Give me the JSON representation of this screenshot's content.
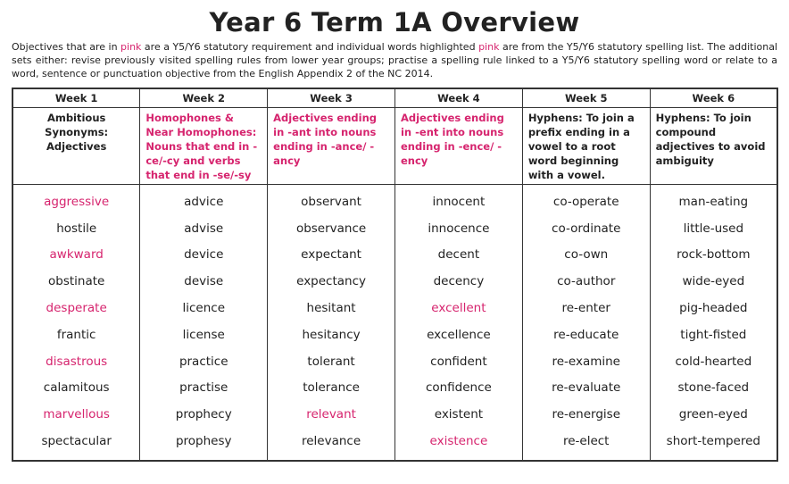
{
  "header": {
    "title": "Year 6 Term 1A Overview",
    "intro": [
      {
        "text": "Objectives that are in ",
        "color": "#222222"
      },
      {
        "text": "pink",
        "color": "#d6246e"
      },
      {
        "text": " are a Y5/Y6 statutory requirement and individual words highlighted ",
        "color": "#222222"
      },
      {
        "text": "pink",
        "color": "#d6246e"
      },
      {
        "text": " are from the Y5/Y6 statutory spelling list. The additional sets either: revise previously visited spelling rules from lower year groups; practise a spelling rule linked to a Y5/Y6 statutory spelling word or relate to a word, sentence or punctuation objective from the English Appendix 2 of the NC 2014.",
        "color": "#222222"
      }
    ]
  },
  "table": {
    "columns": [
      {
        "header": "Week 1",
        "topic": {
          "text": "Ambitious Synonyms: Adjectives",
          "color": "#222222"
        },
        "words": [
          {
            "text": "aggressive",
            "color": "#d6246e"
          },
          {
            "text": "hostile",
            "color": "#222222"
          },
          {
            "text": "awkward",
            "color": "#d6246e"
          },
          {
            "text": "obstinate",
            "color": "#222222"
          },
          {
            "text": "desperate",
            "color": "#d6246e"
          },
          {
            "text": "frantic",
            "color": "#222222"
          },
          {
            "text": "disastrous",
            "color": "#d6246e"
          },
          {
            "text": "calamitous",
            "color": "#222222"
          },
          {
            "text": "marvellous",
            "color": "#d6246e"
          },
          {
            "text": "spectacular",
            "color": "#222222"
          }
        ]
      },
      {
        "header": "Week 2",
        "topic": {
          "text": "Homophones & Near Homophones: Nouns that end in -ce/-cy and verbs that end in -se/-sy",
          "color": "#d6246e"
        },
        "words": [
          {
            "text": "advice",
            "color": "#222222"
          },
          {
            "text": "advise",
            "color": "#222222"
          },
          {
            "text": "device",
            "color": "#222222"
          },
          {
            "text": "devise",
            "color": "#222222"
          },
          {
            "text": "licence",
            "color": "#222222"
          },
          {
            "text": "license",
            "color": "#222222"
          },
          {
            "text": "practice",
            "color": "#222222"
          },
          {
            "text": "practise",
            "color": "#222222"
          },
          {
            "text": "prophecy",
            "color": "#222222"
          },
          {
            "text": "prophesy",
            "color": "#222222"
          }
        ]
      },
      {
        "header": "Week 3",
        "topic": {
          "text": "Adjectives ending in -ant into nouns ending in -ance/ -ancy",
          "color": "#d6246e"
        },
        "words": [
          {
            "text": "observant",
            "color": "#222222"
          },
          {
            "text": "observance",
            "color": "#222222"
          },
          {
            "text": "expectant",
            "color": "#222222"
          },
          {
            "text": "expectancy",
            "color": "#222222"
          },
          {
            "text": "hesitant",
            "color": "#222222"
          },
          {
            "text": "hesitancy",
            "color": "#222222"
          },
          {
            "text": "tolerant",
            "color": "#222222"
          },
          {
            "text": "tolerance",
            "color": "#222222"
          },
          {
            "text": "relevant",
            "color": "#d6246e"
          },
          {
            "text": "relevance",
            "color": "#222222"
          }
        ]
      },
      {
        "header": "Week 4",
        "topic": {
          "text": "Adjectives ending in -ent into nouns ending in -ence/ -ency",
          "color": "#d6246e"
        },
        "words": [
          {
            "text": "innocent",
            "color": "#222222"
          },
          {
            "text": "innocence",
            "color": "#222222"
          },
          {
            "text": "decent",
            "color": "#222222"
          },
          {
            "text": "decency",
            "color": "#222222"
          },
          {
            "text": "excellent",
            "color": "#d6246e"
          },
          {
            "text": "excellence",
            "color": "#222222"
          },
          {
            "text": "confident",
            "color": "#222222"
          },
          {
            "text": "confidence",
            "color": "#222222"
          },
          {
            "text": "existent",
            "color": "#222222"
          },
          {
            "text": "existence",
            "color": "#d6246e"
          }
        ]
      },
      {
        "header": "Week 5",
        "topic": {
          "text": "Hyphens: To join a prefix ending in a vowel to a root word beginning with a vowel.",
          "color": "#222222"
        },
        "words": [
          {
            "text": "co-operate",
            "color": "#222222"
          },
          {
            "text": "co-ordinate",
            "color": "#222222"
          },
          {
            "text": "co-own",
            "color": "#222222"
          },
          {
            "text": "co-author",
            "color": "#222222"
          },
          {
            "text": "re-enter",
            "color": "#222222"
          },
          {
            "text": "re-educate",
            "color": "#222222"
          },
          {
            "text": "re-examine",
            "color": "#222222"
          },
          {
            "text": "re-evaluate",
            "color": "#222222"
          },
          {
            "text": "re-energise",
            "color": "#222222"
          },
          {
            "text": "re-elect",
            "color": "#222222"
          }
        ]
      },
      {
        "header": "Week 6",
        "topic": {
          "text": "Hyphens: To join compound adjectives to avoid ambiguity",
          "color": "#222222"
        },
        "words": [
          {
            "text": "man-eating",
            "color": "#222222"
          },
          {
            "text": "little-used",
            "color": "#222222"
          },
          {
            "text": "rock-bottom",
            "color": "#222222"
          },
          {
            "text": "wide-eyed",
            "color": "#222222"
          },
          {
            "text": "pig-headed",
            "color": "#222222"
          },
          {
            "text": "tight-fisted",
            "color": "#222222"
          },
          {
            "text": "cold-hearted",
            "color": "#222222"
          },
          {
            "text": "stone-faced",
            "color": "#222222"
          },
          {
            "text": "green-eyed",
            "color": "#222222"
          },
          {
            "text": "short-tempered",
            "color": "#222222"
          }
        ]
      }
    ]
  }
}
